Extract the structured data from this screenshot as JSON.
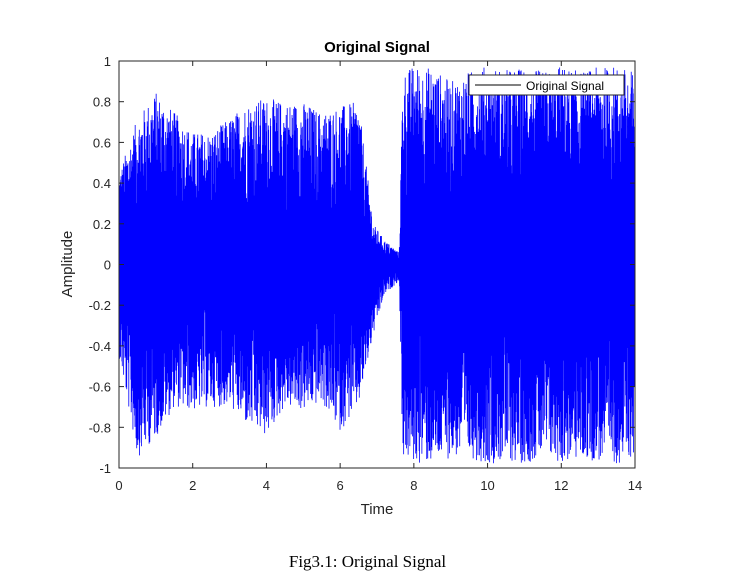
{
  "caption": "Fig3.1: Original Signal",
  "chart_data": {
    "type": "line",
    "title": "Original Signal",
    "xlabel": "Time",
    "ylabel": "Amplitude",
    "xlim": [
      0,
      14
    ],
    "ylim": [
      -1,
      1
    ],
    "xticks": [
      0,
      2,
      4,
      6,
      8,
      10,
      12,
      14
    ],
    "xtick_labels": [
      "0",
      "2",
      "4",
      "6",
      "8",
      "10",
      "12",
      "14"
    ],
    "yticks": [
      1,
      0.8,
      0.6,
      0.4,
      0.2,
      0,
      -0.2,
      -0.4,
      -0.6,
      -0.8,
      -1
    ],
    "ytick_labels": [
      "1",
      "0.8",
      "0.6",
      "0.4",
      "0.2",
      "0",
      "-0.2",
      "-0.4",
      "-0.6",
      "-0.8",
      "-1"
    ],
    "grid": false,
    "legend": {
      "position": "top-right",
      "entries": [
        "Original Signal"
      ]
    },
    "series": [
      {
        "name": "Original Signal",
        "color": "#0000ff",
        "x": [
          0,
          0.5,
          1,
          1.5,
          2,
          2.5,
          3,
          3.5,
          4,
          4.5,
          5,
          5.5,
          6,
          6.5,
          6.9,
          7.2,
          7.6,
          7.7,
          8,
          8.5,
          9,
          9.5,
          10,
          10.5,
          11,
          11.5,
          12,
          12.5,
          13,
          13.5,
          14
        ],
        "y_max": [
          0.45,
          0.72,
          0.85,
          0.75,
          0.65,
          0.65,
          0.72,
          0.8,
          0.82,
          0.8,
          0.8,
          0.75,
          0.78,
          0.8,
          0.2,
          0.12,
          0.06,
          0.95,
          0.98,
          0.97,
          0.9,
          0.95,
          0.98,
          0.96,
          0.97,
          0.95,
          0.98,
          0.95,
          0.97,
          0.98,
          0.95
        ],
        "y_min": [
          -0.45,
          -0.95,
          -0.85,
          -0.7,
          -0.72,
          -0.7,
          -0.7,
          -0.8,
          -0.85,
          -0.7,
          -0.72,
          -0.68,
          -0.82,
          -0.7,
          -0.35,
          -0.15,
          -0.08,
          -0.95,
          -0.98,
          -0.98,
          -0.95,
          -0.95,
          -0.98,
          -0.97,
          -0.98,
          -0.95,
          -0.98,
          -0.96,
          -0.97,
          -0.98,
          -0.95
        ]
      }
    ]
  }
}
